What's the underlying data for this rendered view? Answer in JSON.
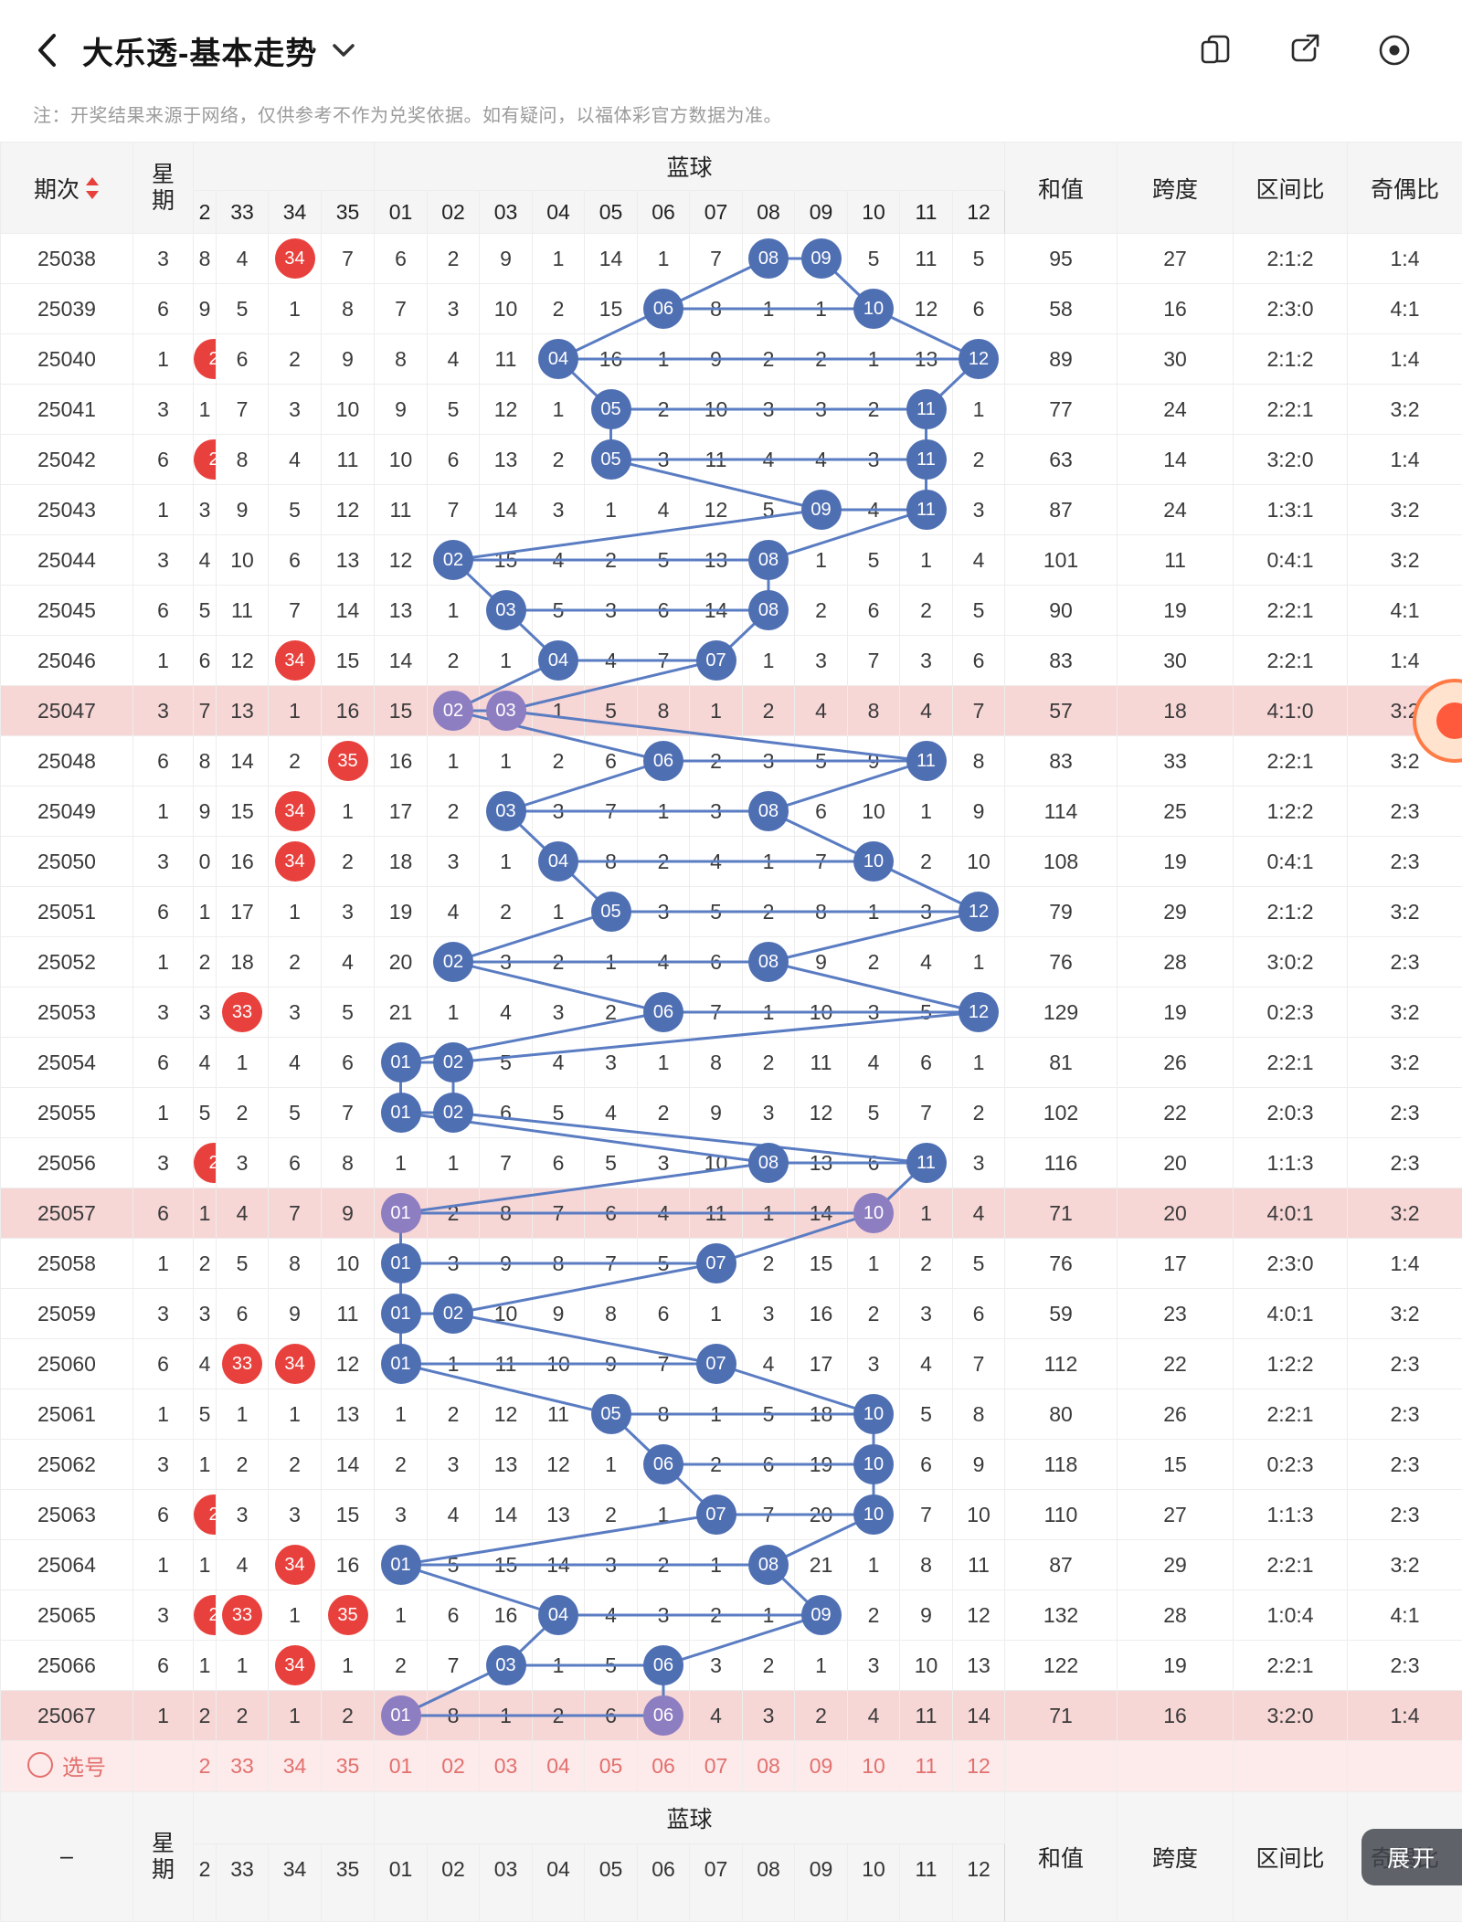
{
  "appbar": {
    "title": "大乐透-基本走势",
    "icons": [
      "switch-page-icon",
      "share-icon",
      "record-icon"
    ]
  },
  "note": "注：开奖结果来源于网络，仅供参考不作为兑奖依据。如有疑问，以福体彩官方数据为准。",
  "colors": {
    "red": "#e8413d",
    "blue": "#4f6fb3",
    "purple": "#8d7dc1",
    "row_highlight": "#f7d6d6",
    "line": "#5a7cc2"
  },
  "table": {
    "headers": {
      "period": "期次",
      "week": "星期",
      "blue_group": "蓝球",
      "sum": "和值",
      "span": "跨度",
      "interval": "区间比",
      "odd_even": "奇偶比"
    },
    "red_cols": [
      "2",
      "33",
      "34",
      "35"
    ],
    "blue_cols": [
      "01",
      "02",
      "03",
      "04",
      "05",
      "06",
      "07",
      "08",
      "09",
      "10",
      "11",
      "12"
    ],
    "select_label": "选号",
    "bottom_dash": "–",
    "expand_label": "展开",
    "rows": [
      {
        "p": "25038",
        "w": "3",
        "r": [
          "8",
          "4",
          "[34]",
          "7"
        ],
        "b": [
          "6",
          "2",
          "9",
          "1",
          "14",
          "1",
          "7",
          "[08]",
          "[09]",
          "5",
          "11",
          "5"
        ],
        "s": "95",
        "sp": "27",
        "iv": "2:1:2",
        "oe": "1:4",
        "hl": false
      },
      {
        "p": "25039",
        "w": "6",
        "r": [
          "9",
          "5",
          "1",
          "8"
        ],
        "b": [
          "7",
          "3",
          "10",
          "2",
          "15",
          "[06]",
          "8",
          "1",
          "1",
          "[10]",
          "12",
          "6"
        ],
        "s": "58",
        "sp": "16",
        "iv": "2:3:0",
        "oe": "4:1",
        "hl": false
      },
      {
        "p": "25040",
        "w": "1",
        "r": [
          "[2]",
          "6",
          "2",
          "9"
        ],
        "b": [
          "8",
          "4",
          "11",
          "[04]",
          "16",
          "1",
          "9",
          "2",
          "2",
          "1",
          "13",
          "[12]"
        ],
        "s": "89",
        "sp": "30",
        "iv": "2:1:2",
        "oe": "1:4",
        "hl": false
      },
      {
        "p": "25041",
        "w": "3",
        "r": [
          "1",
          "7",
          "3",
          "10"
        ],
        "b": [
          "9",
          "5",
          "12",
          "1",
          "[05]",
          "2",
          "10",
          "3",
          "3",
          "2",
          "[11]",
          "1"
        ],
        "s": "77",
        "sp": "24",
        "iv": "2:2:1",
        "oe": "3:2",
        "hl": false
      },
      {
        "p": "25042",
        "w": "6",
        "r": [
          "[2]",
          "8",
          "4",
          "11"
        ],
        "b": [
          "10",
          "6",
          "13",
          "2",
          "[05]",
          "3",
          "11",
          "4",
          "4",
          "3",
          "[11]",
          "2"
        ],
        "s": "63",
        "sp": "14",
        "iv": "3:2:0",
        "oe": "1:4",
        "hl": false
      },
      {
        "p": "25043",
        "w": "1",
        "r": [
          "3",
          "9",
          "5",
          "12"
        ],
        "b": [
          "11",
          "7",
          "14",
          "3",
          "1",
          "4",
          "12",
          "5",
          "[09]",
          "4",
          "[11]",
          "3"
        ],
        "s": "87",
        "sp": "24",
        "iv": "1:3:1",
        "oe": "3:2",
        "hl": false
      },
      {
        "p": "25044",
        "w": "3",
        "r": [
          "4",
          "10",
          "6",
          "13"
        ],
        "b": [
          "12",
          "[02]",
          "15",
          "4",
          "2",
          "5",
          "13",
          "[08]",
          "1",
          "5",
          "1",
          "4"
        ],
        "s": "101",
        "sp": "11",
        "iv": "0:4:1",
        "oe": "3:2",
        "hl": false
      },
      {
        "p": "25045",
        "w": "6",
        "r": [
          "5",
          "11",
          "7",
          "14"
        ],
        "b": [
          "13",
          "1",
          "[03]",
          "5",
          "3",
          "6",
          "14",
          "[08]",
          "2",
          "6",
          "2",
          "5"
        ],
        "s": "90",
        "sp": "19",
        "iv": "2:2:1",
        "oe": "4:1",
        "hl": false
      },
      {
        "p": "25046",
        "w": "1",
        "r": [
          "6",
          "12",
          "[34]",
          "15"
        ],
        "b": [
          "14",
          "2",
          "1",
          "[04]",
          "4",
          "7",
          "[07]",
          "1",
          "3",
          "7",
          "3",
          "6"
        ],
        "s": "83",
        "sp": "30",
        "iv": "2:2:1",
        "oe": "1:4",
        "hl": false
      },
      {
        "p": "25047",
        "w": "3",
        "r": [
          "7",
          "13",
          "1",
          "16"
        ],
        "b": [
          "15",
          "[02]",
          "[03]",
          "1",
          "5",
          "8",
          "1",
          "2",
          "4",
          "8",
          "4",
          "7"
        ],
        "s": "57",
        "sp": "18",
        "iv": "4:1:0",
        "oe": "3:2",
        "hl": true
      },
      {
        "p": "25048",
        "w": "6",
        "r": [
          "8",
          "14",
          "2",
          "[35]"
        ],
        "b": [
          "16",
          "1",
          "1",
          "2",
          "6",
          "[06]",
          "2",
          "3",
          "5",
          "9",
          "[11]",
          "8"
        ],
        "s": "83",
        "sp": "33",
        "iv": "2:2:1",
        "oe": "3:2",
        "hl": false
      },
      {
        "p": "25049",
        "w": "1",
        "r": [
          "9",
          "15",
          "[34]",
          "1"
        ],
        "b": [
          "17",
          "2",
          "[03]",
          "3",
          "7",
          "1",
          "3",
          "[08]",
          "6",
          "10",
          "1",
          "9"
        ],
        "s": "114",
        "sp": "25",
        "iv": "1:2:2",
        "oe": "2:3",
        "hl": false
      },
      {
        "p": "25050",
        "w": "3",
        "r": [
          "0",
          "16",
          "[34]",
          "2"
        ],
        "b": [
          "18",
          "3",
          "1",
          "[04]",
          "8",
          "2",
          "4",
          "1",
          "7",
          "[10]",
          "2",
          "10"
        ],
        "s": "108",
        "sp": "19",
        "iv": "0:4:1",
        "oe": "2:3",
        "hl": false
      },
      {
        "p": "25051",
        "w": "6",
        "r": [
          "1",
          "17",
          "1",
          "3"
        ],
        "b": [
          "19",
          "4",
          "2",
          "1",
          "[05]",
          "3",
          "5",
          "2",
          "8",
          "1",
          "3",
          "[12]"
        ],
        "s": "79",
        "sp": "29",
        "iv": "2:1:2",
        "oe": "3:2",
        "hl": false
      },
      {
        "p": "25052",
        "w": "1",
        "r": [
          "2",
          "18",
          "2",
          "4"
        ],
        "b": [
          "20",
          "[02]",
          "3",
          "2",
          "1",
          "4",
          "6",
          "[08]",
          "9",
          "2",
          "4",
          "1"
        ],
        "s": "76",
        "sp": "28",
        "iv": "3:0:2",
        "oe": "2:3",
        "hl": false
      },
      {
        "p": "25053",
        "w": "3",
        "r": [
          "3",
          "[33]",
          "3",
          "5"
        ],
        "b": [
          "21",
          "1",
          "4",
          "3",
          "2",
          "[06]",
          "7",
          "1",
          "10",
          "3",
          "5",
          "[12]"
        ],
        "s": "129",
        "sp": "19",
        "iv": "0:2:3",
        "oe": "3:2",
        "hl": false
      },
      {
        "p": "25054",
        "w": "6",
        "r": [
          "4",
          "1",
          "4",
          "6"
        ],
        "b": [
          "[01]",
          "[02]",
          "5",
          "4",
          "3",
          "1",
          "8",
          "2",
          "11",
          "4",
          "6",
          "1"
        ],
        "s": "81",
        "sp": "26",
        "iv": "2:2:1",
        "oe": "3:2",
        "hl": false
      },
      {
        "p": "25055",
        "w": "1",
        "r": [
          "5",
          "2",
          "5",
          "7"
        ],
        "b": [
          "[01]",
          "[02]",
          "6",
          "5",
          "4",
          "2",
          "9",
          "3",
          "12",
          "5",
          "7",
          "2"
        ],
        "s": "102",
        "sp": "22",
        "iv": "2:0:3",
        "oe": "2:3",
        "hl": false
      },
      {
        "p": "25056",
        "w": "3",
        "r": [
          "[2]",
          "3",
          "6",
          "8"
        ],
        "b": [
          "1",
          "1",
          "7",
          "6",
          "5",
          "3",
          "10",
          "[08]",
          "13",
          "6",
          "[11]",
          "3"
        ],
        "s": "116",
        "sp": "20",
        "iv": "1:1:3",
        "oe": "2:3",
        "hl": false
      },
      {
        "p": "25057",
        "w": "6",
        "r": [
          "1",
          "4",
          "7",
          "9"
        ],
        "b": [
          "[01]",
          "2",
          "8",
          "7",
          "6",
          "4",
          "11",
          "1",
          "14",
          "[10]",
          "1",
          "4"
        ],
        "s": "71",
        "sp": "20",
        "iv": "4:0:1",
        "oe": "3:2",
        "hl": true
      },
      {
        "p": "25058",
        "w": "1",
        "r": [
          "2",
          "5",
          "8",
          "10"
        ],
        "b": [
          "[01]",
          "3",
          "9",
          "8",
          "7",
          "5",
          "[07]",
          "2",
          "15",
          "1",
          "2",
          "5"
        ],
        "s": "76",
        "sp": "17",
        "iv": "2:3:0",
        "oe": "1:4",
        "hl": false
      },
      {
        "p": "25059",
        "w": "3",
        "r": [
          "3",
          "6",
          "9",
          "11"
        ],
        "b": [
          "[01]",
          "[02]",
          "10",
          "9",
          "8",
          "6",
          "1",
          "3",
          "16",
          "2",
          "3",
          "6"
        ],
        "s": "59",
        "sp": "23",
        "iv": "4:0:1",
        "oe": "3:2",
        "hl": false
      },
      {
        "p": "25060",
        "w": "6",
        "r": [
          "4",
          "[33]",
          "[34]",
          "12"
        ],
        "b": [
          "[01]",
          "1",
          "11",
          "10",
          "9",
          "7",
          "[07]",
          "4",
          "17",
          "3",
          "4",
          "7"
        ],
        "s": "112",
        "sp": "22",
        "iv": "1:2:2",
        "oe": "2:3",
        "hl": false
      },
      {
        "p": "25061",
        "w": "1",
        "r": [
          "5",
          "1",
          "1",
          "13"
        ],
        "b": [
          "1",
          "2",
          "12",
          "11",
          "[05]",
          "8",
          "1",
          "5",
          "18",
          "[10]",
          "5",
          "8"
        ],
        "s": "80",
        "sp": "26",
        "iv": "2:2:1",
        "oe": "2:3",
        "hl": false
      },
      {
        "p": "25062",
        "w": "3",
        "r": [
          "1",
          "2",
          "2",
          "14"
        ],
        "b": [
          "2",
          "3",
          "13",
          "12",
          "1",
          "[06]",
          "2",
          "6",
          "19",
          "[10]",
          "6",
          "9"
        ],
        "s": "118",
        "sp": "15",
        "iv": "0:2:3",
        "oe": "2:3",
        "hl": false
      },
      {
        "p": "25063",
        "w": "6",
        "r": [
          "[2]",
          "3",
          "3",
          "15"
        ],
        "b": [
          "3",
          "4",
          "14",
          "13",
          "2",
          "1",
          "[07]",
          "7",
          "20",
          "[10]",
          "7",
          "10"
        ],
        "s": "110",
        "sp": "27",
        "iv": "1:1:3",
        "oe": "2:3",
        "hl": false
      },
      {
        "p": "25064",
        "w": "1",
        "r": [
          "1",
          "4",
          "[34]",
          "16"
        ],
        "b": [
          "[01]",
          "5",
          "15",
          "14",
          "3",
          "2",
          "1",
          "[08]",
          "21",
          "1",
          "8",
          "11"
        ],
        "s": "87",
        "sp": "29",
        "iv": "2:2:1",
        "oe": "3:2",
        "hl": false
      },
      {
        "p": "25065",
        "w": "3",
        "r": [
          "[2]",
          "[33]",
          "1",
          "[35]"
        ],
        "b": [
          "1",
          "6",
          "16",
          "[04]",
          "4",
          "3",
          "2",
          "1",
          "[09]",
          "2",
          "9",
          "12"
        ],
        "s": "132",
        "sp": "28",
        "iv": "1:0:4",
        "oe": "4:1",
        "hl": false
      },
      {
        "p": "25066",
        "w": "6",
        "r": [
          "1",
          "1",
          "[34]",
          "1"
        ],
        "b": [
          "2",
          "7",
          "[03]",
          "1",
          "5",
          "[06]",
          "3",
          "2",
          "1",
          "3",
          "10",
          "13"
        ],
        "s": "122",
        "sp": "19",
        "iv": "2:2:1",
        "oe": "2:3",
        "hl": false
      },
      {
        "p": "25067",
        "w": "1",
        "r": [
          "2",
          "2",
          "1",
          "2"
        ],
        "b": [
          "[01]",
          "8",
          "1",
          "2",
          "6",
          "[06]",
          "4",
          "3",
          "2",
          "4",
          "11",
          "14"
        ],
        "s": "71",
        "sp": "16",
        "iv": "3:2:0",
        "oe": "1:4",
        "hl": true
      }
    ]
  }
}
